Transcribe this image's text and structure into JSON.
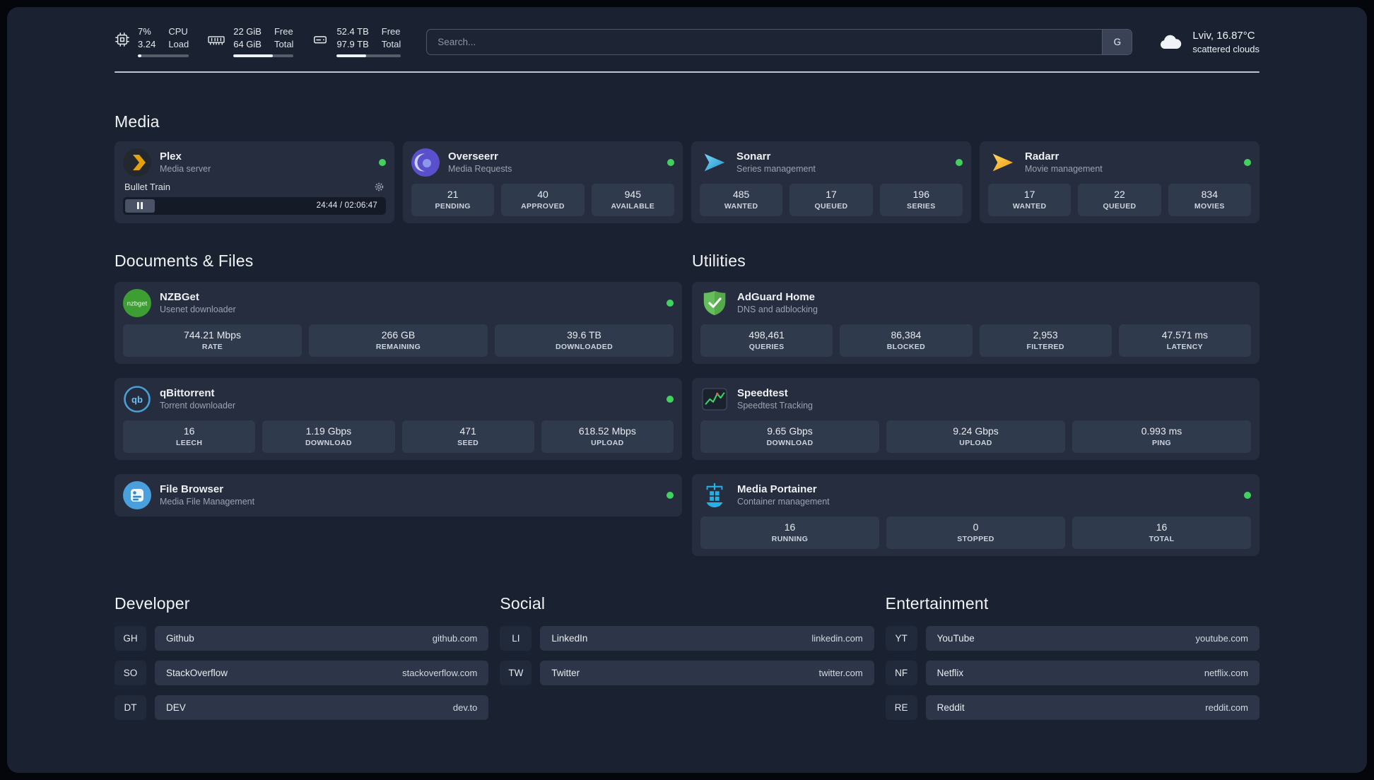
{
  "topbar": {
    "cpu": {
      "line1": "7%",
      "line2": "3.24",
      "label1": "CPU",
      "label2": "Load",
      "progress_pct": 7
    },
    "memory": {
      "line1": "22 GiB",
      "line2": "64 GiB",
      "label1": "Free",
      "label2": "Total",
      "progress_pct": 66
    },
    "storage": {
      "line1": "52.4 TB",
      "line2": "97.9 TB",
      "label1": "Free",
      "label2": "Total",
      "progress_pct": 46
    },
    "search": {
      "placeholder": "Search...",
      "engine_label": "G"
    },
    "weather": {
      "location": "Lviv, 16.87°C",
      "condition": "scattered clouds"
    }
  },
  "sections": {
    "media": "Media",
    "documents": "Documents & Files",
    "utilities": "Utilities",
    "developer": "Developer",
    "social": "Social",
    "entertainment": "Entertainment"
  },
  "services": {
    "plex": {
      "name": "Plex",
      "subtitle": "Media server",
      "online": true,
      "player": {
        "title": "Bullet Train",
        "time": "24:44 / 02:06:47"
      }
    },
    "overseerr": {
      "name": "Overseerr",
      "subtitle": "Media Requests",
      "online": true,
      "stats": [
        {
          "value": "21",
          "label": "PENDING"
        },
        {
          "value": "40",
          "label": "APPROVED"
        },
        {
          "value": "945",
          "label": "AVAILABLE"
        }
      ]
    },
    "sonarr": {
      "name": "Sonarr",
      "subtitle": "Series management",
      "online": true,
      "stats": [
        {
          "value": "485",
          "label": "WANTED"
        },
        {
          "value": "17",
          "label": "QUEUED"
        },
        {
          "value": "196",
          "label": "SERIES"
        }
      ]
    },
    "radarr": {
      "name": "Radarr",
      "subtitle": "Movie management",
      "online": true,
      "stats": [
        {
          "value": "17",
          "label": "WANTED"
        },
        {
          "value": "22",
          "label": "QUEUED"
        },
        {
          "value": "834",
          "label": "MOVIES"
        }
      ]
    },
    "nzbget": {
      "name": "NZBGet",
      "subtitle": "Usenet downloader",
      "online": true,
      "stats": [
        {
          "value": "744.21 Mbps",
          "label": "RATE"
        },
        {
          "value": "266 GB",
          "label": "REMAINING"
        },
        {
          "value": "39.6 TB",
          "label": "DOWNLOADED"
        }
      ]
    },
    "qbittorrent": {
      "name": "qBittorrent",
      "subtitle": "Torrent downloader",
      "online": true,
      "stats": [
        {
          "value": "16",
          "label": "LEECH"
        },
        {
          "value": "1.19 Gbps",
          "label": "DOWNLOAD"
        },
        {
          "value": "471",
          "label": "SEED"
        },
        {
          "value": "618.52 Mbps",
          "label": "UPLOAD"
        }
      ]
    },
    "filebrowser": {
      "name": "File Browser",
      "subtitle": "Media File Management",
      "online": true
    },
    "adguard": {
      "name": "AdGuard Home",
      "subtitle": "DNS and adblocking",
      "stats": [
        {
          "value": "498,461",
          "label": "QUERIES"
        },
        {
          "value": "86,384",
          "label": "BLOCKED"
        },
        {
          "value": "2,953",
          "label": "FILTERED"
        },
        {
          "value": "47.571 ms",
          "label": "LATENCY"
        }
      ]
    },
    "speedtest": {
      "name": "Speedtest",
      "subtitle": "Speedtest Tracking",
      "stats": [
        {
          "value": "9.65 Gbps",
          "label": "DOWNLOAD"
        },
        {
          "value": "9.24 Gbps",
          "label": "UPLOAD"
        },
        {
          "value": "0.993 ms",
          "label": "PING"
        }
      ]
    },
    "portainer": {
      "name": "Media Portainer",
      "subtitle": "Container management",
      "online": true,
      "stats": [
        {
          "value": "16",
          "label": "RUNNING"
        },
        {
          "value": "0",
          "label": "STOPPED"
        },
        {
          "value": "16",
          "label": "TOTAL"
        }
      ]
    }
  },
  "bookmarks": {
    "developer": [
      {
        "abbr": "GH",
        "name": "Github",
        "url": "github.com"
      },
      {
        "abbr": "SO",
        "name": "StackOverflow",
        "url": "stackoverflow.com"
      },
      {
        "abbr": "DT",
        "name": "DEV",
        "url": "dev.to"
      }
    ],
    "social": [
      {
        "abbr": "LI",
        "name": "LinkedIn",
        "url": "linkedin.com"
      },
      {
        "abbr": "TW",
        "name": "Twitter",
        "url": "twitter.com"
      }
    ],
    "entertainment": [
      {
        "abbr": "YT",
        "name": "YouTube",
        "url": "youtube.com"
      },
      {
        "abbr": "NF",
        "name": "Netflix",
        "url": "netflix.com"
      },
      {
        "abbr": "RE",
        "name": "Reddit",
        "url": "reddit.com"
      }
    ]
  },
  "icons": {
    "cpu": "chip-icon",
    "memory": "ram-stick-icon",
    "storage": "hard-drive-icon",
    "weather": "cloud-icon",
    "settings": "gear-icon",
    "playback": "pause-icon"
  },
  "colors": {
    "background": "#1a2231",
    "card": "#252d3e",
    "tile": "#303a4d",
    "status_online": "#40d15f",
    "plex_accent": "#e5a00d",
    "sonarr_accent": "#2fa8dd",
    "radarr_accent": "#f5a623",
    "adguard_accent": "#5cb454"
  }
}
